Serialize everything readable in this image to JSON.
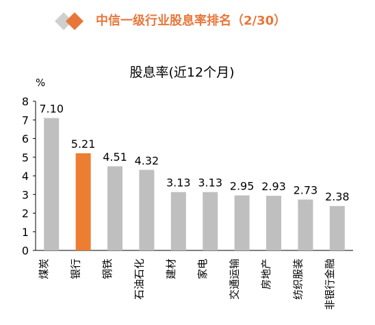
{
  "page": {
    "title": "中信一级行业股息率排名（2/30）",
    "accent_color": "#E8763A",
    "header_icon": "two-diamonds-icon"
  },
  "chart_data": {
    "type": "bar",
    "title": "股息率(近12个月)",
    "ylabel": "%",
    "xlabel": "",
    "ylim": [
      0,
      8
    ],
    "yticks": [
      0,
      1,
      2,
      3,
      4,
      5,
      6,
      7,
      8
    ],
    "grid": false,
    "categories": [
      "煤炭",
      "银行",
      "钢铁",
      "石油石化",
      "建材",
      "家电",
      "交通运输",
      "房地产",
      "纺织服装",
      "非银行金融"
    ],
    "values": [
      7.1,
      5.21,
      4.51,
      4.32,
      3.13,
      3.13,
      2.95,
      2.93,
      2.73,
      2.38
    ],
    "data_labels": [
      "7.10",
      "5.21",
      "4.51",
      "4.32",
      "3.13",
      "3.13",
      "2.95",
      "2.93",
      "2.73",
      "2.38"
    ],
    "highlight_category": "银行",
    "colors": {
      "default": "#BFBFBF",
      "highlight": "#ED7D31",
      "axis": "#000000"
    }
  }
}
